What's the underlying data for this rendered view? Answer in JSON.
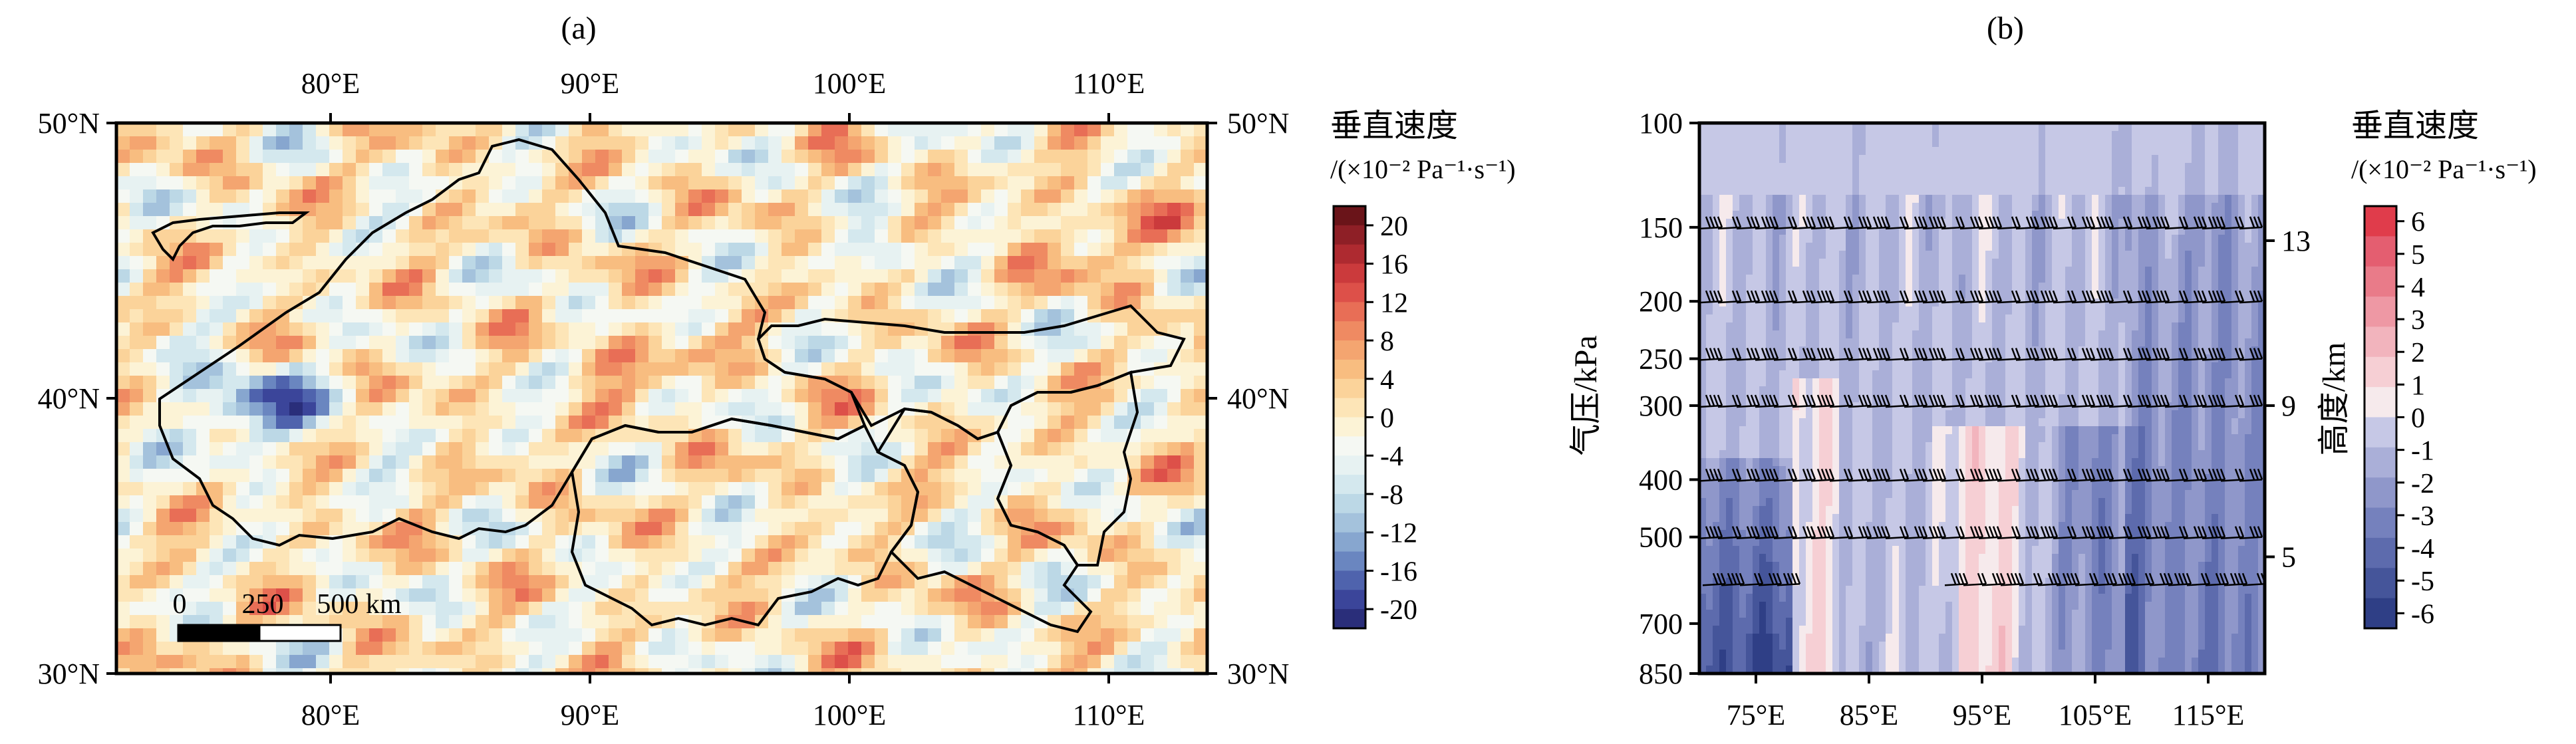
{
  "panels": [
    {
      "label": "(a)",
      "chart_data": {
        "type": "heatmap",
        "title": "(a)",
        "x_ticks": [
          "80°E",
          "90°E",
          "100°E",
          "110°E"
        ],
        "x_tick_values": [
          80,
          90,
          100,
          110
        ],
        "y_ticks": [
          "30°N",
          "40°N",
          "50°N"
        ],
        "y_tick_values": [
          30,
          40,
          50
        ],
        "xlim": [
          72,
          114
        ],
        "ylim": [
          30,
          50
        ],
        "colorbar": {
          "title_line1": "垂直速度",
          "title_line2": "/(×10⁻² Pa⁻¹·s⁻¹)",
          "tick_labels": [
            "20",
            "16",
            "12",
            "8",
            "4",
            "0",
            "-4",
            "-8",
            "-12",
            "-16",
            "-20"
          ],
          "levels": [
            -22,
            -20,
            -18,
            -16,
            -14,
            -12,
            -10,
            -8,
            -6,
            -4,
            -2,
            0,
            2,
            4,
            6,
            8,
            10,
            12,
            14,
            16,
            18,
            20,
            22
          ],
          "colors": [
            "#2a2e7a",
            "#3b459a",
            "#4f63ad",
            "#6a86c0",
            "#87a6cf",
            "#a4c2dc",
            "#bcd8e6",
            "#d4e8ee",
            "#e7f2f2",
            "#f5f8f3",
            "#fcf3d6",
            "#fde5b7",
            "#fbd39a",
            "#f8bd80",
            "#f4a570",
            "#ef8a62",
            "#e86e56",
            "#dd5049",
            "#cb3a3c",
            "#ae2a30",
            "#8e1f26",
            "#6a1419"
          ]
        },
        "scale_bar": {
          "labels": [
            "0",
            "250",
            "500 km"
          ]
        },
        "field_description": "vertical velocity, mostly weak values with strong negative cores in the west and positive bands in the north"
      }
    },
    {
      "label": "(b)",
      "chart_data": {
        "type": "heatmap",
        "title": "(b)",
        "x_ticks": [
          "75°E",
          "85°E",
          "95°E",
          "105°E",
          "115°E"
        ],
        "x_tick_values": [
          75,
          85,
          95,
          105,
          115
        ],
        "xlim": [
          70,
          120
        ],
        "ylabel": "气压/kPa",
        "y_ticks": [
          "100",
          "150",
          "200",
          "250",
          "300",
          "400",
          "500",
          "700",
          "850"
        ],
        "y_tick_values": [
          100,
          150,
          200,
          250,
          300,
          400,
          500,
          700,
          850
        ],
        "ylim": [
          850,
          100
        ],
        "yscale": "log",
        "y2label": "高度/km",
        "y2_ticks": [
          "13",
          "9",
          "5"
        ],
        "y2_tick_pressures": [
          158,
          300,
          540
        ],
        "colorbar": {
          "title_line1": "垂直速度",
          "title_line2": "/(×10⁻² Pa⁻¹·s⁻¹)",
          "tick_labels": [
            "6",
            "5",
            "4",
            "3",
            "2",
            "1",
            "0",
            "-1",
            "-2",
            "-3",
            "-4",
            "-5",
            "-6"
          ],
          "levels": [
            -7,
            -6,
            -5,
            -4,
            -3,
            -2,
            -1,
            0,
            1,
            2,
            3,
            4,
            5,
            6,
            7
          ],
          "colors": [
            "#2f3f86",
            "#45559a",
            "#5d6bad",
            "#7581bd",
            "#8f97ca",
            "#aaafd8",
            "#c6c8e6",
            "#f6eaec",
            "#f6cfd4",
            "#f2b4bd",
            "#ee98a4",
            "#e97b89",
            "#e45e70",
            "#e03c4b"
          ]
        },
        "wind_barb_levels": [
          150,
          200,
          250,
          300,
          400,
          500,
          600
        ],
        "field_description": "descending (negative) motion dominates, with weak upward motion bands near 100°E below 300 kPa"
      }
    }
  ]
}
